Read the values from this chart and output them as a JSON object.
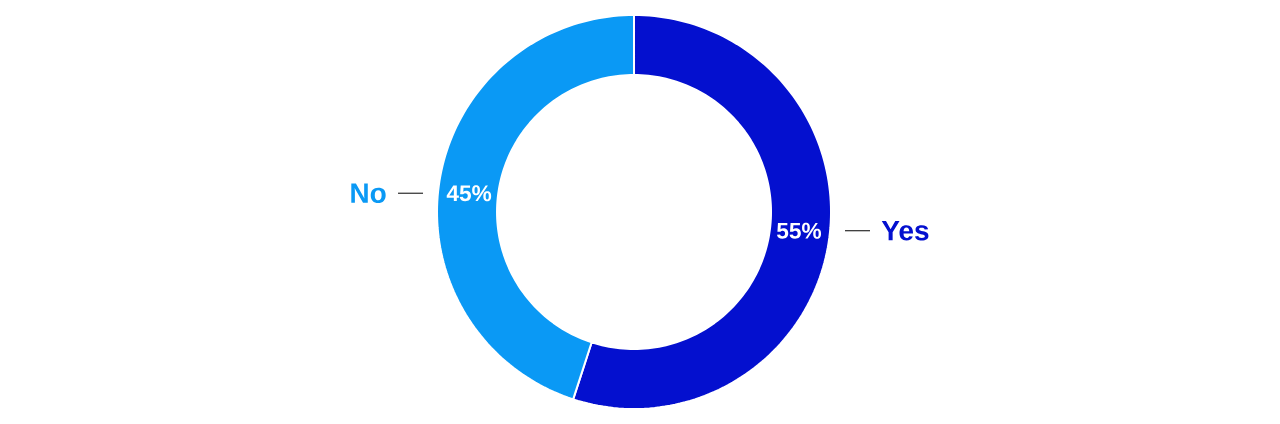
{
  "chart_data": {
    "type": "donut",
    "categories": [
      "Yes",
      "No"
    ],
    "values": [
      55,
      45
    ],
    "colors": [
      "#0410cf",
      "#0a99f5"
    ],
    "value_labels": [
      "55%",
      "45%"
    ]
  }
}
